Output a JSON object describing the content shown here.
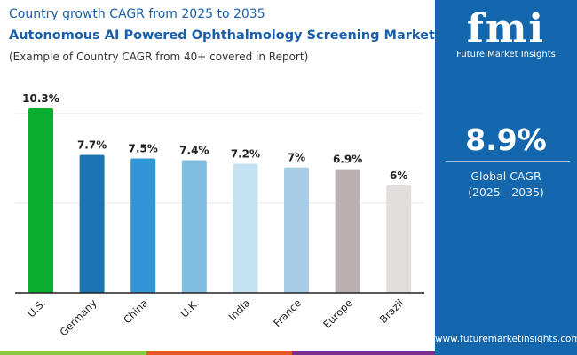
{
  "header": {
    "line1": "Country growth CAGR from 2025 to 2035",
    "title": "Autonomous AI Powered Ophthalmology Screening Market",
    "subtitle": "(Example of Country CAGR from 40+ covered in Report)"
  },
  "panel": {
    "logo": "fmi",
    "brand": "Future Market Insights",
    "value": "8.9%",
    "label": "Global CAGR",
    "period": "(2025 - 2035)",
    "url": "www.futuremarketinsights.com",
    "bg": "#1467ad"
  },
  "stripes": [
    "#8dc63f",
    "#e8562a",
    "#7b2d8e"
  ],
  "chart_data": {
    "type": "bar",
    "title": "",
    "xlabel": "",
    "ylabel": "",
    "ylim": [
      0,
      10.3
    ],
    "grid": true,
    "gridlines": [
      5,
      10
    ],
    "categories": [
      "U.S.",
      "Germany",
      "China",
      "U.K.",
      "India",
      "France",
      "Europe",
      "Brazil"
    ],
    "values": [
      10.3,
      7.7,
      7.5,
      7.4,
      7.2,
      7,
      6.9,
      6
    ],
    "labels": [
      "10.3%",
      "7.7%",
      "7.5%",
      "7.4%",
      "7.2%",
      "7%",
      "6.9%",
      "6%"
    ],
    "colors": [
      "#0aae2e",
      "#1b75b2",
      "#3195d6",
      "#82bde3",
      "#c5e2f3",
      "#a6cde5",
      "#b9b0b0",
      "#e3dede"
    ]
  }
}
